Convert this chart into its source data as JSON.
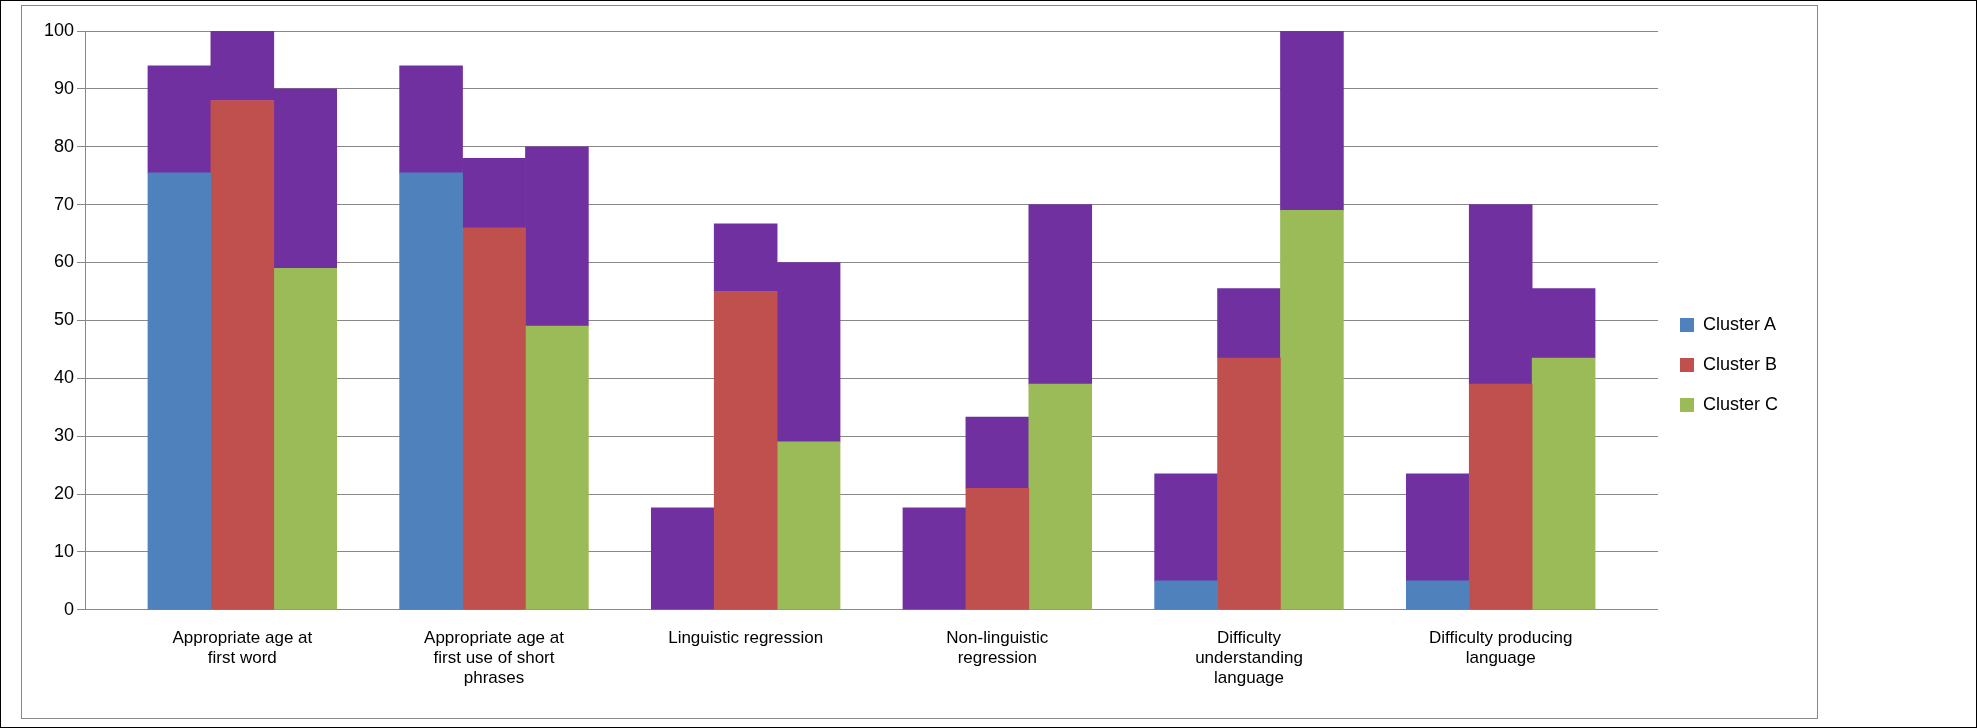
{
  "chart_data": {
    "type": "bar",
    "stacked": true,
    "categories": [
      null,
      null,
      "Appropriate age at first word",
      null,
      null,
      null,
      "Appropriate age at first use of short phrases",
      null,
      null,
      null,
      "Linguistic regression",
      null,
      null,
      null,
      "Non-linguistic regression",
      null,
      null,
      null,
      "Difficulty understanding language",
      null,
      null,
      null,
      "Difficulty producing language",
      null,
      null
    ],
    "series": [
      {
        "name": "Cluster A",
        "color": "#4f81bd",
        "values": [
          null,
          75.5,
          null,
          null,
          null,
          75.5,
          null,
          null,
          null,
          0,
          null,
          null,
          null,
          0,
          null,
          null,
          null,
          5,
          null,
          null,
          null,
          5,
          null,
          null,
          null
        ]
      },
      {
        "name": "Cluster B",
        "color": "#c0504d",
        "values": [
          null,
          null,
          88,
          null,
          null,
          null,
          66,
          null,
          null,
          null,
          55,
          null,
          null,
          null,
          21,
          null,
          null,
          null,
          43.5,
          null,
          null,
          null,
          39,
          null,
          null
        ]
      },
      {
        "name": "Cluster C",
        "color": "#9bbb59",
        "values": [
          null,
          null,
          null,
          59,
          null,
          null,
          null,
          49,
          null,
          null,
          null,
          29,
          null,
          null,
          null,
          39,
          null,
          null,
          null,
          69,
          null,
          null,
          null,
          43.5,
          null
        ]
      },
      {
        "color": "#7030a0",
        "values": [
          null,
          18.5,
          12,
          31,
          null,
          18.5,
          12,
          31,
          null,
          17.6,
          11.7,
          31,
          null,
          17.6,
          12.3,
          31,
          null,
          18.5,
          12,
          31,
          null,
          18.5,
          31,
          12,
          null
        ]
      }
    ],
    "ylim": [
      0,
      100
    ],
    "yticks": [
      0,
      10,
      20,
      30,
      40,
      50,
      60,
      70,
      80,
      90,
      100
    ],
    "grid": "y",
    "legend": "right"
  }
}
